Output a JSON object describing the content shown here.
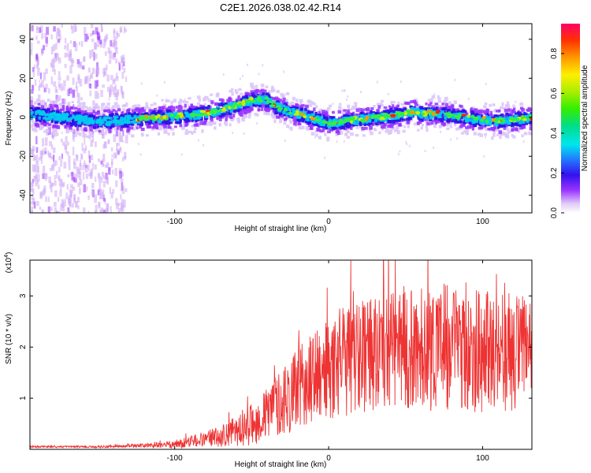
{
  "page_title": "C2E1.2026.038.02.42.R14",
  "colors": {
    "snr_line": "#ee3333",
    "frame": "#000000"
  },
  "chart_data": [
    {
      "type": "heatmap",
      "title": "C2E1.2026.038.02.42.R14",
      "xlabel": "Height of straight line (km)",
      "ylabel": "Frequency (Hz)",
      "xlim": [
        -194,
        132
      ],
      "ylim": [
        -49,
        48
      ],
      "xticks": [
        -100,
        0,
        100
      ],
      "xtick_labels": [
        "-100",
        "0",
        "100"
      ],
      "yticks": [
        -40,
        -20,
        0,
        20,
        40
      ],
      "ytick_labels": [
        "-40",
        "-20",
        "0",
        "20",
        "40"
      ],
      "ridge_center_hz": {
        "x": [
          -194,
          -170,
          -150,
          -130,
          -110,
          -90,
          -75,
          -60,
          -50,
          -40,
          -35,
          -25,
          -15,
          -8,
          0,
          10,
          20,
          30,
          40,
          50,
          55,
          60,
          70,
          80,
          90,
          100,
          110,
          120,
          132
        ],
        "y": [
          2,
          0,
          -2,
          -1,
          0,
          1,
          3,
          6,
          9,
          9,
          6,
          3,
          1,
          -1,
          -3,
          -2,
          -1,
          0,
          1,
          2,
          3,
          2,
          2,
          1,
          0,
          -1,
          -2,
          -1,
          0
        ]
      },
      "noise_region_km": [
        -194,
        -132
      ],
      "colorbar": {
        "label": "Normalized spectral amplitude",
        "range": [
          0,
          0.95
        ],
        "ticks": [
          0,
          0.2,
          0.4,
          0.6,
          0.8
        ],
        "tick_labels": [
          "0.0",
          "0.2",
          "0.4",
          "0.6",
          "0.8"
        ]
      }
    },
    {
      "type": "line",
      "xlabel": "Height of straight line (km)",
      "ylabel": "SNR (10 * v/v)",
      "y_multiplier": "(x10",
      "y_multiplier_exp": "4",
      "y_multiplier_close": ")",
      "xlim": [
        -194,
        132
      ],
      "ylim": [
        0,
        3.7
      ],
      "xticks": [
        -100,
        0,
        100
      ],
      "xtick_labels": [
        "-100",
        "0",
        "100"
      ],
      "yticks": [
        1,
        2,
        3
      ],
      "ytick_labels": [
        "1",
        "2",
        "3"
      ],
      "envelope": {
        "x": [
          -194,
          -150,
          -120,
          -100,
          -80,
          -60,
          -45,
          -35,
          -25,
          -15,
          -5,
          5,
          15,
          25,
          40,
          60,
          80,
          100,
          115,
          132
        ],
        "mean": [
          0.05,
          0.05,
          0.07,
          0.1,
          0.2,
          0.35,
          0.55,
          0.85,
          1.05,
          1.3,
          1.5,
          1.65,
          1.8,
          1.95,
          2.0,
          2.0,
          2.0,
          1.95,
          1.9,
          1.9
        ],
        "spread": [
          0.02,
          0.02,
          0.04,
          0.08,
          0.15,
          0.3,
          0.45,
          0.6,
          0.75,
          0.85,
          0.95,
          1.05,
          1.15,
          1.2,
          1.2,
          1.25,
          1.25,
          1.25,
          1.2,
          1.1
        ]
      }
    }
  ]
}
